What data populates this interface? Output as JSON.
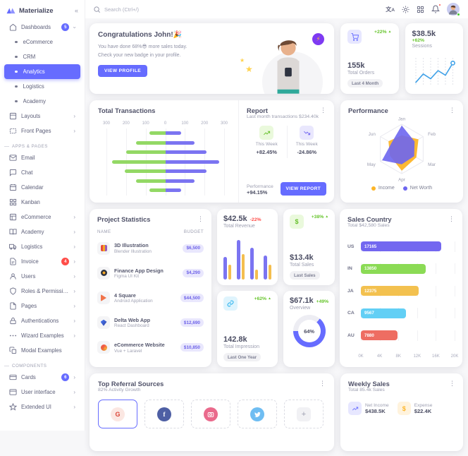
{
  "colors": {
    "primary": "#666CFF",
    "success": "#72E128",
    "warning": "#FDB528",
    "error": "#FF4D49",
    "info": "#26C6F9",
    "chart_green": "#93D865",
    "chart_purple": "#7B74F1"
  },
  "brand": {
    "name": "Materialize"
  },
  "topbar": {
    "search_placeholder": "Search (Ctrl+/)"
  },
  "sidebar": {
    "dashboards": {
      "label": "Dashboards",
      "badge": "5"
    },
    "dash_children": [
      {
        "label": "eCommerce"
      },
      {
        "label": "CRM"
      },
      {
        "label": "Analytics"
      },
      {
        "label": "Logistics"
      },
      {
        "label": "Academy"
      }
    ],
    "layouts": {
      "label": "Layouts"
    },
    "front_pages": {
      "label": "Front Pages"
    },
    "apps_header": "APPS & PAGES",
    "apps": [
      {
        "label": "Email"
      },
      {
        "label": "Chat"
      },
      {
        "label": "Calendar"
      },
      {
        "label": "Kanban"
      },
      {
        "label": "eCommerce"
      },
      {
        "label": "Academy"
      },
      {
        "label": "Logistics"
      },
      {
        "label": "Invoice",
        "badge": "4"
      },
      {
        "label": "Users"
      },
      {
        "label": "Roles & Permissio..."
      },
      {
        "label": "Pages"
      },
      {
        "label": "Authentications"
      },
      {
        "label": "Wizard Examples"
      },
      {
        "label": "Modal Examples"
      }
    ],
    "components_header": "COMPONENTS",
    "components": [
      {
        "label": "Cards",
        "badge": "6"
      },
      {
        "label": "User interface"
      },
      {
        "label": "Extended UI"
      }
    ]
  },
  "congrats": {
    "title": "Congratulations John!🎉",
    "line1": "You have done 68%😎 more sales today.",
    "line2": "Check your new badge in your profile.",
    "button": "VIEW PROFILE"
  },
  "orders": {
    "delta": "+22%",
    "value": "155k",
    "label": "Total Orders",
    "chip": "Last 4 Month"
  },
  "sessions": {
    "value": "$38.5k",
    "delta": "+62%",
    "label": "Sessions",
    "points": [
      12,
      45,
      26,
      58,
      40,
      88
    ]
  },
  "transactions": {
    "title": "Total Transactions",
    "max": 300,
    "axis": [
      "300",
      "200",
      "100",
      "0",
      "100",
      "200",
      "300"
    ],
    "rows": [
      {
        "green": 80,
        "purple": 80
      },
      {
        "green": 150,
        "purple": 150
      },
      {
        "green": 200,
        "purple": 210
      },
      {
        "green": 270,
        "purple": 275
      },
      {
        "green": 205,
        "purple": 210
      },
      {
        "green": 150,
        "purple": 150
      },
      {
        "green": 80,
        "purple": 80
      }
    ]
  },
  "report": {
    "title": "Report",
    "subtitle": "Last month transactions $234.40k",
    "up_label": "This Week",
    "up_value": "+82.45%",
    "down_label": "This Week",
    "down_value": "-24.86%",
    "perf_label": "Performance",
    "perf_value": "+94.15%",
    "button": "VIEW REPORT"
  },
  "performance": {
    "title": "Performance",
    "months": [
      "Jan",
      "Feb",
      "Mar",
      "Apr",
      "May",
      "Jun"
    ],
    "income": [
      55,
      78,
      68,
      88,
      55,
      62
    ],
    "net_worth": [
      95,
      60,
      58,
      62,
      92,
      48
    ],
    "legend": [
      {
        "label": "Income",
        "color": "#FDB528"
      },
      {
        "label": "Net Worth",
        "color": "#6D66F0"
      }
    ]
  },
  "projects": {
    "title": "Project Statistics",
    "col_name": "NAME",
    "col_budget": "BUDGET",
    "rows": [
      {
        "name": "3D Illustration",
        "sub": "Blender Illustration",
        "budget": "$6,500"
      },
      {
        "name": "Finance App Design",
        "sub": "Figma UI Kit",
        "budget": "$4,290"
      },
      {
        "name": "4 Square",
        "sub": "Android Application",
        "budget": "$44,500"
      },
      {
        "name": "Delta Web App",
        "sub": "React Dashboard",
        "budget": "$12,690"
      },
      {
        "name": "eCommerce Website",
        "sub": "Vue + Laravel",
        "budget": "$10,850"
      }
    ]
  },
  "revenue": {
    "value": "$42.5k",
    "delta": "-22%",
    "label": "Total Revenue",
    "purple": [
      58,
      100,
      80,
      60
    ],
    "orange": [
      38,
      64,
      25,
      38
    ]
  },
  "total_sales": {
    "delta": "+38%",
    "value": "$13.4k",
    "label": "Total Sales",
    "chip": "Last Sales"
  },
  "impression": {
    "delta": "+62%",
    "value": "142.8k",
    "label": "Total Impression",
    "chip": "Last One Year"
  },
  "overview": {
    "value": "$67.1k",
    "delta": "+49%",
    "label": "Overview",
    "percent": 64,
    "percent_label": "64%"
  },
  "sales_country": {
    "title": "Sales Country",
    "subtitle": "Total $42,580 Sales",
    "max": 20000,
    "axis": [
      "0K",
      "4K",
      "8K",
      "12K",
      "16K",
      "20K"
    ],
    "rows": [
      {
        "code": "US",
        "value": 17165,
        "color": "#7367F0"
      },
      {
        "code": "IN",
        "value": 13850,
        "color": "#8BDB55"
      },
      {
        "code": "JA",
        "value": 12375,
        "color": "#F3C14F"
      },
      {
        "code": "CA",
        "value": 9567,
        "color": "#62CFF5"
      },
      {
        "code": "AU",
        "value": 7880,
        "color": "#EE6D62"
      }
    ]
  },
  "referral": {
    "title": "Top Referral Sources",
    "subtitle": "82% Activity Growth"
  },
  "weekly": {
    "title": "Weekly Sales",
    "subtitle": "Total 85.4k Sales",
    "net_income_label": "Net Income",
    "net_income_value": "$438.5K",
    "expense_label": "Expense",
    "expense_value": "$22.4K"
  }
}
